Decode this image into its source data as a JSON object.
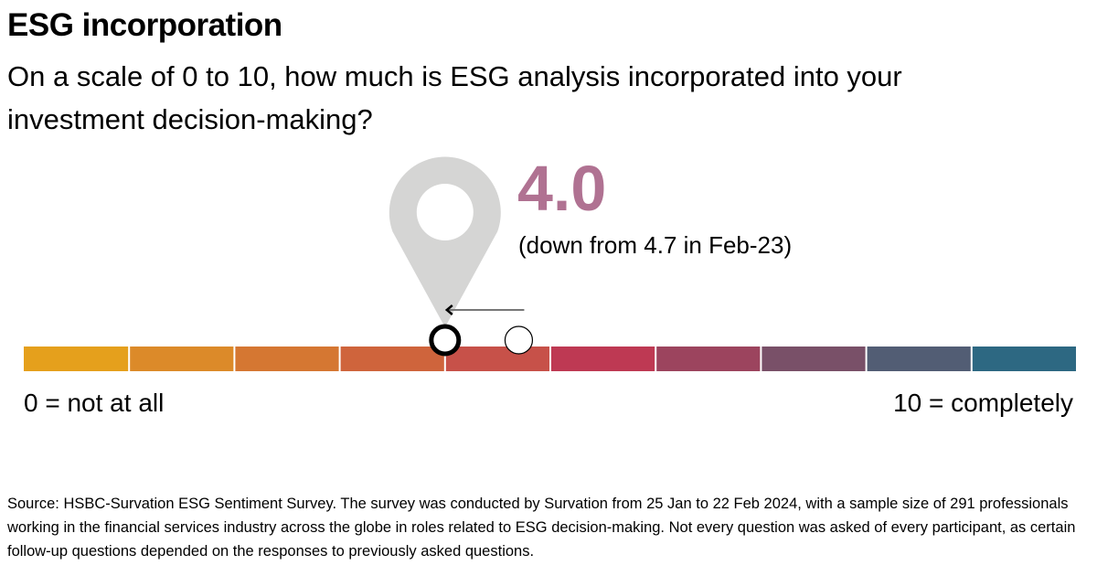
{
  "title": "ESG incorporation",
  "subtitle": "On a scale of 0 to 10, how much is ESG analysis incorporated into your investment decision-making?",
  "headline": {
    "value": "4.0",
    "change_text": "(down from 4.7 in Feb-23)",
    "color": "#B07292"
  },
  "chart_data": {
    "type": "scale",
    "min": 0,
    "max": 10,
    "current": 4.0,
    "previous": 4.7,
    "min_label": "0 = not at all",
    "max_label": "10 = completely",
    "segment_colors": [
      "#E5A01C",
      "#DC8A29",
      "#D57732",
      "#CF643C",
      "#C75149",
      "#BE3953",
      "#9C445E",
      "#795068",
      "#525D74",
      "#2D6882"
    ],
    "marker_icon": "map-pin-icon",
    "arrow": "left"
  },
  "source": "Source: HSBC-Survation ESG Sentiment Survey. The survey was conducted by Survation from 25 Jan to 22 Feb 2024, with a sample size of 291 professionals working in the financial services industry across the globe in roles related to ESG decision-making. Not every question was asked of every participant, as certain follow-up questions depended on the responses to previously asked questions."
}
